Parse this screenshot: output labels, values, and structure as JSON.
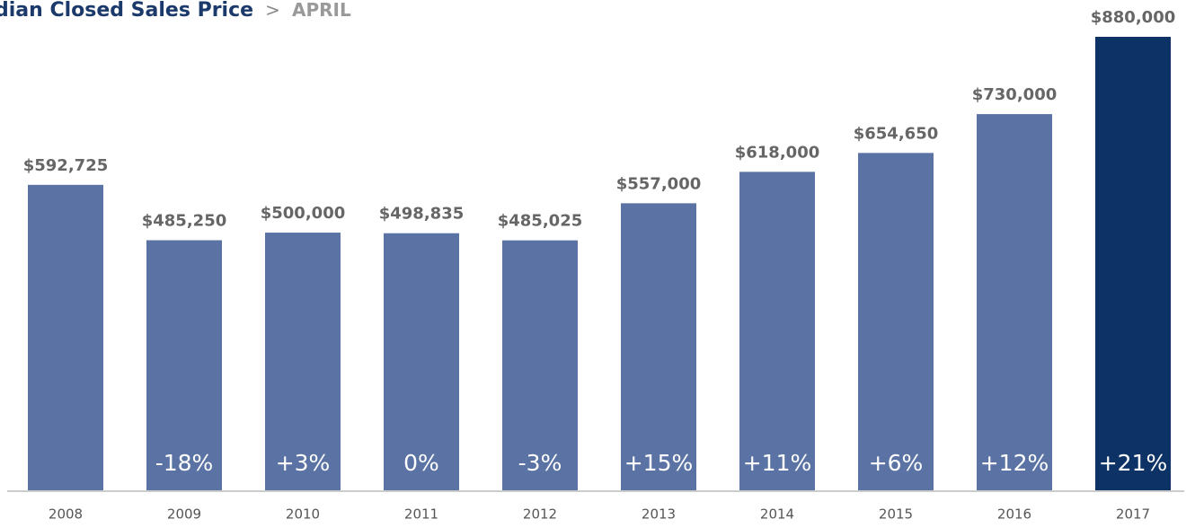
{
  "chart_data": {
    "type": "bar",
    "title": "dian Closed Sales Price",
    "separator": ">",
    "subtitle": "APRIL",
    "categories": [
      "2008",
      "2009",
      "2010",
      "2011",
      "2012",
      "2013",
      "2014",
      "2015",
      "2016",
      "2017"
    ],
    "values": [
      592725,
      485250,
      500000,
      498835,
      485025,
      557000,
      618000,
      654650,
      730000,
      880000
    ],
    "value_labels": [
      "$592,725",
      "$485,250",
      "$500,000",
      "$498,835",
      "$485,025",
      "$557,000",
      "$618,000",
      "$654,650",
      "$730,000",
      "$880,000"
    ],
    "changes": [
      null,
      -18,
      3,
      0,
      -3,
      15,
      11,
      6,
      12,
      21
    ],
    "change_labels": [
      null,
      "-18%",
      "+3%",
      "0%",
      "-3%",
      "+15%",
      "+11%",
      "+6%",
      "+12%",
      "+21%"
    ],
    "colors": [
      "#5a73a4",
      "#5a73a4",
      "#5a73a4",
      "#5a73a4",
      "#5a73a4",
      "#5a73a4",
      "#5a73a4",
      "#5a73a4",
      "#5a73a4",
      "#0d3366"
    ]
  }
}
